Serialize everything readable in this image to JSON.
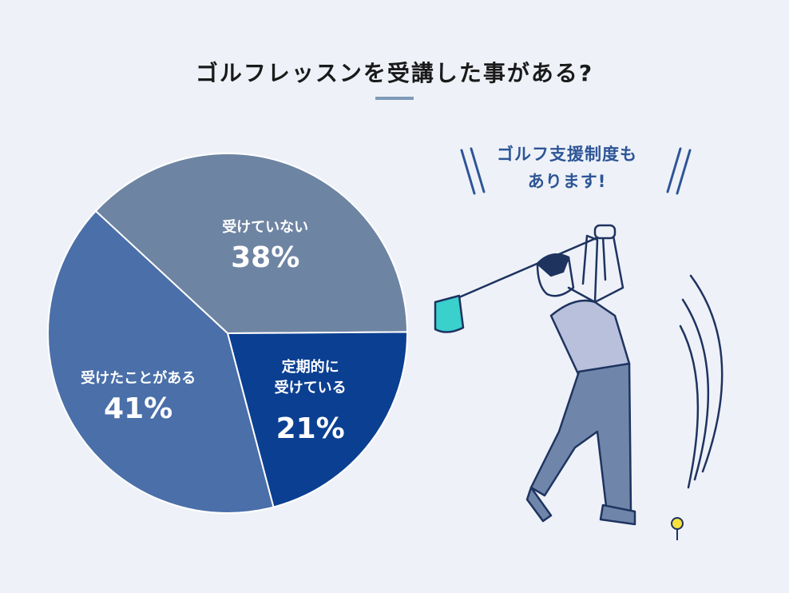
{
  "title": "ゴルフレッスンを受講した事がある?",
  "annotation": "ゴルフ支援制度も\nあります!",
  "chart_data": {
    "type": "pie",
    "categories": [
      "受けていない",
      "定期的に\n受けている",
      "受けたことがある"
    ],
    "values": [
      38,
      21,
      41
    ],
    "value_labels": [
      "38%",
      "21%",
      "41%"
    ],
    "colors": [
      "#6e84a3",
      "#0b3f92",
      "#4a6fa9"
    ]
  }
}
